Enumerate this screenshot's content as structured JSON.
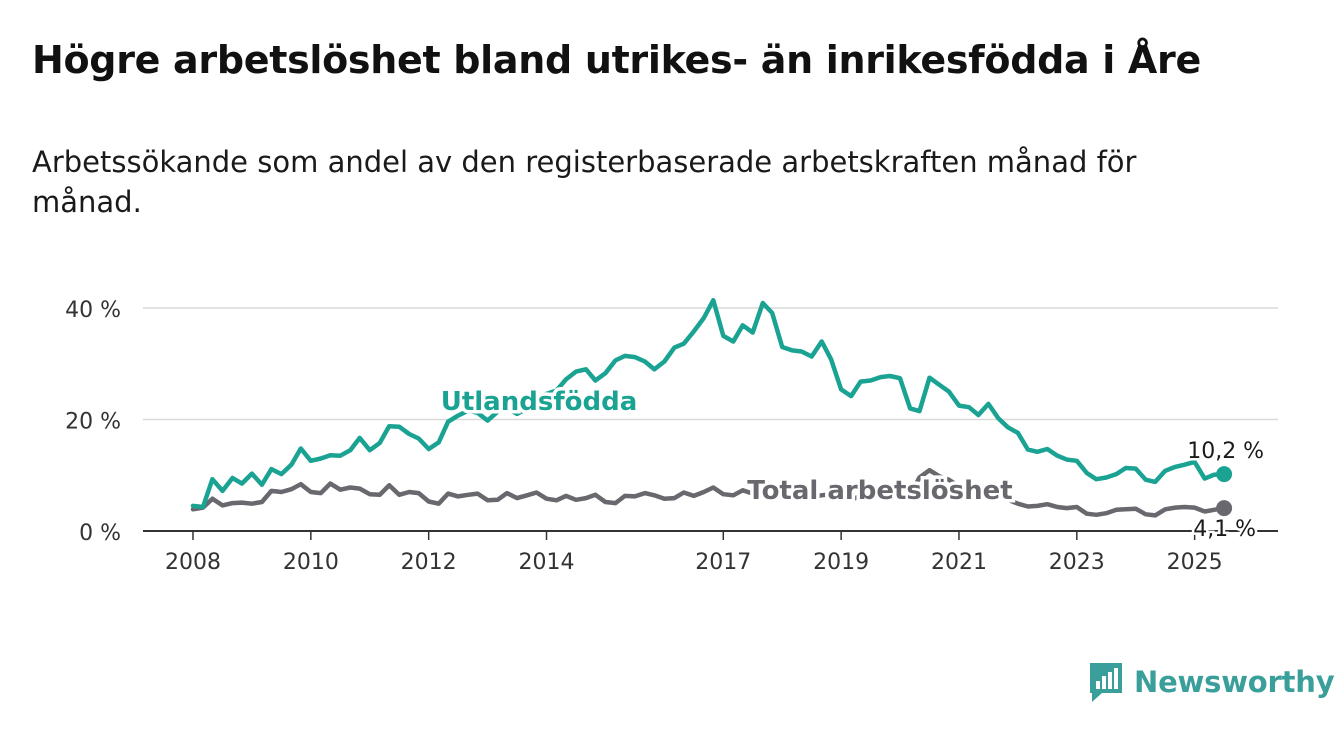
{
  "header": {
    "title": "Högre arbetslöshet bland utrikes- än inrikesfödda i Åre",
    "subtitle": "Arbetssökande som andel av den registerbaserade arbetskraften månad för månad."
  },
  "brand": {
    "name": "Newsworthy",
    "icon": "bar-chart-speech-bubble-icon",
    "color": "#3a9f9a"
  },
  "chart_data": {
    "type": "line",
    "xlabel": "",
    "ylabel": "",
    "ylim": [
      0,
      40
    ],
    "y_ticks": [
      "0 %",
      "20 %",
      "40 %"
    ],
    "y_tick_values": [
      0,
      20,
      40
    ],
    "x_ticks": [
      "2008",
      "2010",
      "2012",
      "2014",
      "2017",
      "2019",
      "2021",
      "2023",
      "2025"
    ],
    "x_tick_values": [
      2008,
      2010,
      2012,
      2014,
      2017,
      2019,
      2021,
      2023,
      2025
    ],
    "xlim": [
      2008,
      2025.6
    ],
    "grid": "horizontal",
    "series": [
      {
        "name": "Utlandsfödda",
        "color": "#1aa393",
        "end_label": "10,2 %",
        "points": [
          [
            2008.0,
            4.5
          ],
          [
            2008.17,
            4.3
          ],
          [
            2008.33,
            9.3
          ],
          [
            2008.5,
            7.2
          ],
          [
            2008.67,
            9.5
          ],
          [
            2008.83,
            8.5
          ],
          [
            2009.0,
            10.3
          ],
          [
            2009.17,
            8.3
          ],
          [
            2009.33,
            11.1
          ],
          [
            2009.5,
            10.2
          ],
          [
            2009.67,
            11.9
          ],
          [
            2009.83,
            14.8
          ],
          [
            2010.0,
            12.6
          ],
          [
            2010.17,
            13.0
          ],
          [
            2010.33,
            13.6
          ],
          [
            2010.5,
            13.5
          ],
          [
            2010.67,
            14.5
          ],
          [
            2010.83,
            16.7
          ],
          [
            2011.0,
            14.5
          ],
          [
            2011.17,
            15.8
          ],
          [
            2011.33,
            18.8
          ],
          [
            2011.5,
            18.7
          ],
          [
            2011.67,
            17.4
          ],
          [
            2011.83,
            16.6
          ],
          [
            2012.0,
            14.7
          ],
          [
            2012.17,
            15.9
          ],
          [
            2012.33,
            19.6
          ],
          [
            2012.5,
            20.7
          ],
          [
            2012.67,
            21.6
          ],
          [
            2012.83,
            21.2
          ],
          [
            2013.0,
            19.8
          ],
          [
            2013.17,
            21.4
          ],
          [
            2013.33,
            22.0
          ],
          [
            2013.5,
            21.0
          ],
          [
            2013.67,
            22.0
          ],
          [
            2013.83,
            24.0
          ],
          [
            2014.0,
            24.6
          ],
          [
            2014.17,
            25.2
          ],
          [
            2014.33,
            27.2
          ],
          [
            2014.5,
            28.6
          ],
          [
            2014.67,
            29.0
          ],
          [
            2014.83,
            27.0
          ],
          [
            2015.0,
            28.3
          ],
          [
            2015.17,
            30.6
          ],
          [
            2015.33,
            31.4
          ],
          [
            2015.5,
            31.2
          ],
          [
            2015.67,
            30.4
          ],
          [
            2015.83,
            29.0
          ],
          [
            2016.0,
            30.4
          ],
          [
            2016.17,
            32.9
          ],
          [
            2016.33,
            33.6
          ],
          [
            2016.5,
            35.8
          ],
          [
            2016.67,
            38.2
          ],
          [
            2016.83,
            41.4
          ],
          [
            2017.0,
            35.0
          ],
          [
            2017.17,
            34.0
          ],
          [
            2017.33,
            36.9
          ],
          [
            2017.5,
            35.6
          ],
          [
            2017.67,
            40.9
          ],
          [
            2017.83,
            39.1
          ],
          [
            2018.0,
            33.0
          ],
          [
            2018.17,
            32.4
          ],
          [
            2018.33,
            32.2
          ],
          [
            2018.5,
            31.3
          ],
          [
            2018.67,
            34.0
          ],
          [
            2018.83,
            30.8
          ],
          [
            2019.0,
            25.4
          ],
          [
            2019.17,
            24.2
          ],
          [
            2019.33,
            26.8
          ],
          [
            2019.5,
            27.0
          ],
          [
            2019.67,
            27.6
          ],
          [
            2019.83,
            27.8
          ],
          [
            2020.0,
            27.4
          ],
          [
            2020.17,
            22.0
          ],
          [
            2020.33,
            21.5
          ],
          [
            2020.5,
            27.5
          ],
          [
            2020.67,
            26.2
          ],
          [
            2020.83,
            25.0
          ],
          [
            2021.0,
            22.5
          ],
          [
            2021.17,
            22.2
          ],
          [
            2021.33,
            20.8
          ],
          [
            2021.5,
            22.8
          ],
          [
            2021.67,
            20.2
          ],
          [
            2021.83,
            18.6
          ],
          [
            2022.0,
            17.6
          ],
          [
            2022.17,
            14.6
          ],
          [
            2022.33,
            14.2
          ],
          [
            2022.5,
            14.7
          ],
          [
            2022.67,
            13.5
          ],
          [
            2022.83,
            12.8
          ],
          [
            2023.0,
            12.6
          ],
          [
            2023.17,
            10.4
          ],
          [
            2023.33,
            9.3
          ],
          [
            2023.5,
            9.6
          ],
          [
            2023.67,
            10.2
          ],
          [
            2023.83,
            11.3
          ],
          [
            2024.0,
            11.2
          ],
          [
            2024.17,
            9.2
          ],
          [
            2024.33,
            8.8
          ],
          [
            2024.5,
            10.8
          ],
          [
            2024.67,
            11.5
          ],
          [
            2024.83,
            11.9
          ],
          [
            2025.0,
            12.4
          ],
          [
            2025.17,
            9.4
          ],
          [
            2025.33,
            10.1
          ],
          [
            2025.5,
            10.2
          ]
        ]
      },
      {
        "name": "Total arbetslöshet",
        "color": "#68686e",
        "end_label": "4,1 %",
        "points": [
          [
            2008.0,
            3.9
          ],
          [
            2008.17,
            4.2
          ],
          [
            2008.33,
            5.8
          ],
          [
            2008.5,
            4.6
          ],
          [
            2008.67,
            5.0
          ],
          [
            2008.83,
            5.1
          ],
          [
            2009.0,
            4.9
          ],
          [
            2009.17,
            5.2
          ],
          [
            2009.33,
            7.2
          ],
          [
            2009.5,
            7.0
          ],
          [
            2009.67,
            7.5
          ],
          [
            2009.83,
            8.4
          ],
          [
            2010.0,
            7.0
          ],
          [
            2010.17,
            6.8
          ],
          [
            2010.33,
            8.5
          ],
          [
            2010.5,
            7.4
          ],
          [
            2010.67,
            7.8
          ],
          [
            2010.83,
            7.6
          ],
          [
            2011.0,
            6.6
          ],
          [
            2011.17,
            6.5
          ],
          [
            2011.33,
            8.2
          ],
          [
            2011.5,
            6.5
          ],
          [
            2011.67,
            7.0
          ],
          [
            2011.83,
            6.8
          ],
          [
            2012.0,
            5.3
          ],
          [
            2012.17,
            4.9
          ],
          [
            2012.33,
            6.7
          ],
          [
            2012.5,
            6.2
          ],
          [
            2012.67,
            6.5
          ],
          [
            2012.83,
            6.7
          ],
          [
            2013.0,
            5.5
          ],
          [
            2013.17,
            5.6
          ],
          [
            2013.33,
            6.8
          ],
          [
            2013.5,
            5.9
          ],
          [
            2013.67,
            6.4
          ],
          [
            2013.83,
            6.9
          ],
          [
            2014.0,
            5.8
          ],
          [
            2014.17,
            5.5
          ],
          [
            2014.33,
            6.3
          ],
          [
            2014.5,
            5.6
          ],
          [
            2014.67,
            5.9
          ],
          [
            2014.83,
            6.5
          ],
          [
            2015.0,
            5.2
          ],
          [
            2015.17,
            5.0
          ],
          [
            2015.33,
            6.3
          ],
          [
            2015.5,
            6.2
          ],
          [
            2015.67,
            6.8
          ],
          [
            2015.83,
            6.4
          ],
          [
            2016.0,
            5.8
          ],
          [
            2016.17,
            5.9
          ],
          [
            2016.33,
            6.9
          ],
          [
            2016.5,
            6.3
          ],
          [
            2016.67,
            7.0
          ],
          [
            2016.83,
            7.8
          ],
          [
            2017.0,
            6.6
          ],
          [
            2017.17,
            6.4
          ],
          [
            2017.33,
            7.3
          ],
          [
            2017.5,
            6.7
          ],
          [
            2017.67,
            7.0
          ],
          [
            2017.83,
            6.9
          ],
          [
            2018.0,
            6.0
          ],
          [
            2018.17,
            6.2
          ],
          [
            2018.33,
            6.6
          ],
          [
            2018.5,
            6.1
          ],
          [
            2018.67,
            6.4
          ],
          [
            2018.83,
            6.6
          ],
          [
            2019.0,
            5.6
          ],
          [
            2019.17,
            5.6
          ],
          [
            2019.33,
            6.3
          ],
          [
            2019.5,
            6.1
          ],
          [
            2019.67,
            6.8
          ],
          [
            2019.83,
            6.9
          ],
          [
            2020.0,
            7.3
          ],
          [
            2020.17,
            6.5
          ],
          [
            2020.33,
            9.6
          ],
          [
            2020.5,
            10.9
          ],
          [
            2020.67,
            9.8
          ],
          [
            2020.83,
            9.2
          ],
          [
            2021.0,
            8.0
          ],
          [
            2021.17,
            7.7
          ],
          [
            2021.33,
            7.0
          ],
          [
            2021.5,
            7.4
          ],
          [
            2021.67,
            6.3
          ],
          [
            2021.83,
            5.6
          ],
          [
            2022.0,
            4.9
          ],
          [
            2022.17,
            4.4
          ],
          [
            2022.33,
            4.5
          ],
          [
            2022.5,
            4.8
          ],
          [
            2022.67,
            4.3
          ],
          [
            2022.83,
            4.1
          ],
          [
            2023.0,
            4.3
          ],
          [
            2023.17,
            3.1
          ],
          [
            2023.33,
            2.9
          ],
          [
            2023.5,
            3.2
          ],
          [
            2023.67,
            3.8
          ],
          [
            2023.83,
            3.9
          ],
          [
            2024.0,
            4.0
          ],
          [
            2024.17,
            3.0
          ],
          [
            2024.33,
            2.8
          ],
          [
            2024.5,
            3.9
          ],
          [
            2024.67,
            4.2
          ],
          [
            2024.83,
            4.3
          ],
          [
            2025.0,
            4.2
          ],
          [
            2025.17,
            3.5
          ],
          [
            2025.33,
            3.8
          ],
          [
            2025.5,
            4.1
          ]
        ]
      }
    ]
  }
}
